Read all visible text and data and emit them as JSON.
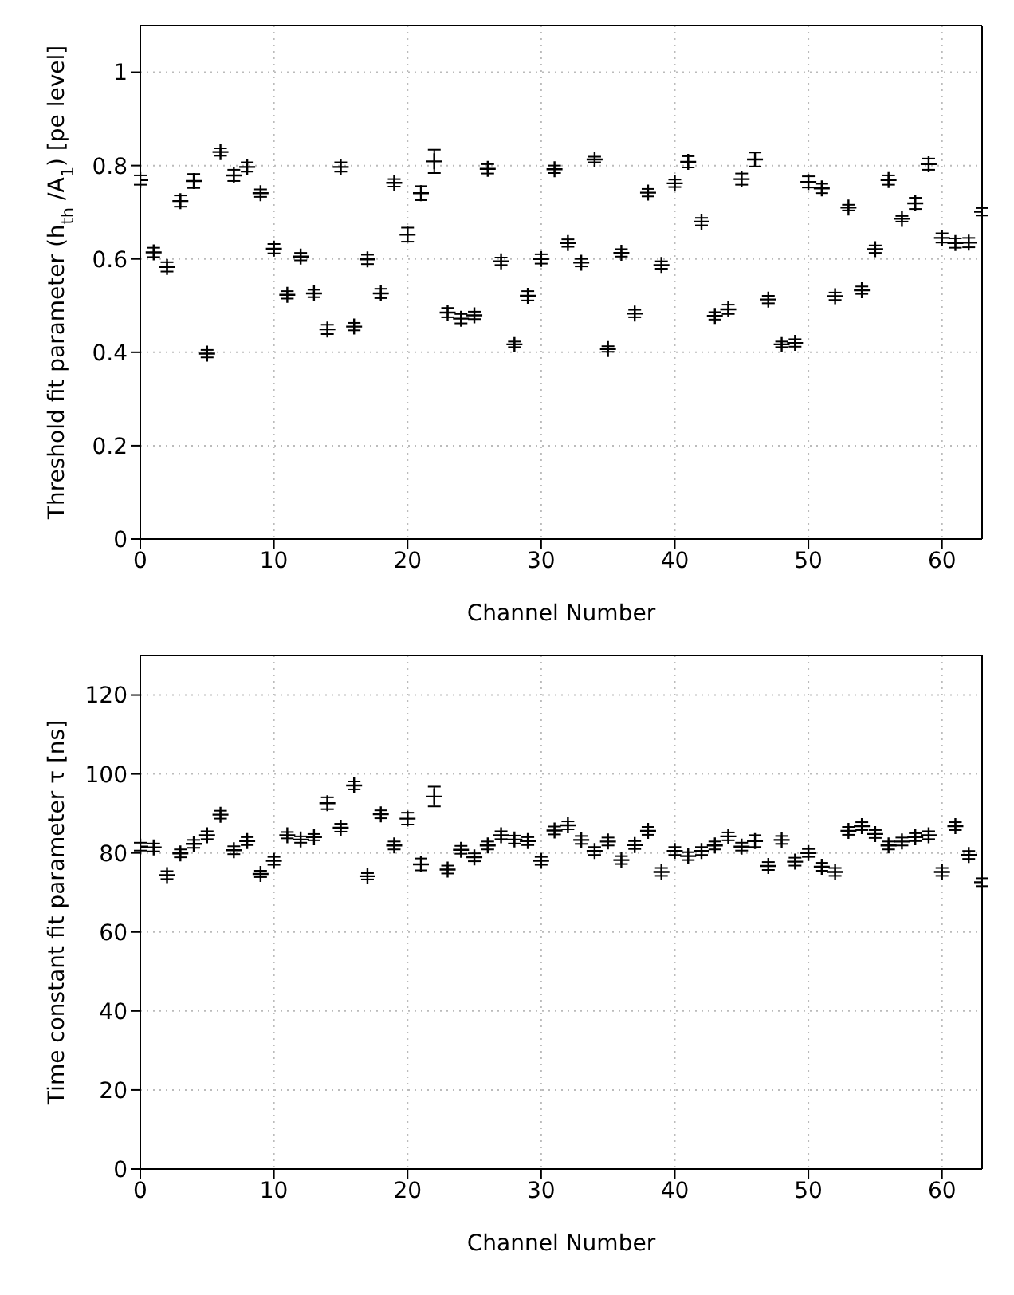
{
  "chart_data": [
    {
      "type": "scatter",
      "xlabel": "Channel Number",
      "ylabel": "Threshold fit parameter (h$_{th}$ /A$_{1}$) [pe level]",
      "xlim": [
        0,
        63
      ],
      "xticks": [
        0,
        10,
        20,
        30,
        40,
        50,
        60
      ],
      "ylim": [
        0,
        1.1
      ],
      "yticks": [
        0,
        0.2,
        0.4,
        0.6,
        0.8,
        1
      ],
      "grid": true,
      "marker": "cross",
      "series": [
        {
          "color": "#000000",
          "x": [
            0,
            1,
            2,
            3,
            4,
            5,
            6,
            7,
            8,
            9,
            10,
            11,
            12,
            13,
            14,
            15,
            16,
            17,
            18,
            19,
            20,
            21,
            22,
            23,
            24,
            25,
            26,
            27,
            28,
            29,
            30,
            31,
            32,
            33,
            34,
            35,
            36,
            37,
            38,
            39,
            40,
            41,
            42,
            43,
            44,
            45,
            46,
            47,
            48,
            49,
            50,
            51,
            52,
            53,
            54,
            55,
            56,
            57,
            58,
            59,
            60,
            61,
            62,
            63
          ],
          "values": [
            0.769,
            0.614,
            0.583,
            0.724,
            0.767,
            0.397,
            0.829,
            0.779,
            0.797,
            0.741,
            0.622,
            0.523,
            0.605,
            0.526,
            0.449,
            0.797,
            0.455,
            0.599,
            0.526,
            0.763,
            0.652,
            0.741,
            0.809,
            0.485,
            0.472,
            0.479,
            0.793,
            0.595,
            0.417,
            0.521,
            0.6,
            0.792,
            0.634,
            0.592,
            0.813,
            0.407,
            0.613,
            0.483,
            0.742,
            0.587,
            0.762,
            0.808,
            0.68,
            0.478,
            0.492,
            0.771,
            0.813,
            0.513,
            0.417,
            0.42,
            0.765,
            0.751,
            0.52,
            0.71,
            0.533,
            0.621,
            0.769,
            0.686,
            0.719,
            0.803,
            0.645,
            0.634,
            0.635,
            0.701
          ],
          "errors": [
            0.01,
            0.01,
            0.01,
            0.012,
            0.015,
            0.008,
            0.008,
            0.012,
            0.01,
            0.008,
            0.01,
            0.008,
            0.008,
            0.008,
            0.01,
            0.01,
            0.008,
            0.01,
            0.01,
            0.008,
            0.015,
            0.015,
            0.025,
            0.01,
            0.01,
            0.008,
            0.01,
            0.008,
            0.006,
            0.01,
            0.01,
            0.008,
            0.008,
            0.008,
            0.006,
            0.006,
            0.008,
            0.008,
            0.008,
            0.008,
            0.008,
            0.012,
            0.008,
            0.008,
            0.01,
            0.012,
            0.015,
            0.008,
            0.006,
            0.008,
            0.012,
            0.01,
            0.008,
            0.006,
            0.008,
            0.008,
            0.01,
            0.006,
            0.012,
            0.012,
            0.01,
            0.01,
            0.01,
            0.008
          ]
        }
      ]
    },
    {
      "type": "scatter",
      "xlabel": "Channel Number",
      "ylabel": "Time constant fit parameter τ [ns]",
      "xlim": [
        0,
        63
      ],
      "xticks": [
        0,
        10,
        20,
        30,
        40,
        50,
        60
      ],
      "ylim": [
        0,
        130
      ],
      "yticks": [
        0,
        20,
        40,
        60,
        80,
        100,
        120
      ],
      "grid": true,
      "marker": "cross",
      "series": [
        {
          "color": "#000000",
          "x": [
            0,
            1,
            2,
            3,
            4,
            5,
            6,
            7,
            8,
            9,
            10,
            11,
            12,
            13,
            14,
            15,
            16,
            17,
            18,
            19,
            20,
            21,
            22,
            23,
            24,
            25,
            26,
            27,
            28,
            29,
            30,
            31,
            32,
            33,
            34,
            35,
            36,
            37,
            38,
            39,
            40,
            41,
            42,
            43,
            44,
            45,
            46,
            47,
            48,
            49,
            50,
            51,
            52,
            53,
            54,
            55,
            56,
            57,
            58,
            59,
            60,
            61,
            62,
            63
          ],
          "values": [
            81.6,
            81.4,
            74.4,
            79.9,
            82.3,
            84.5,
            89.7,
            80.7,
            83.0,
            74.7,
            78.0,
            84.5,
            83.4,
            84.0,
            92.6,
            86.4,
            97.1,
            74.1,
            89.8,
            81.9,
            88.7,
            77.1,
            94.3,
            75.8,
            80.8,
            78.9,
            81.9,
            84.5,
            83.4,
            83.0,
            78.0,
            85.7,
            87.0,
            83.3,
            80.5,
            82.9,
            78.2,
            82.0,
            85.6,
            75.2,
            80.5,
            79.2,
            80.5,
            81.9,
            84.2,
            81.6,
            83.0,
            76.7,
            83.3,
            77.8,
            80.0,
            76.5,
            75.2,
            85.6,
            86.8,
            84.8,
            81.9,
            82.9,
            84.0,
            84.5,
            75.2,
            86.8,
            79.5,
            72.6
          ],
          "errors": [
            1,
            1,
            1,
            1,
            1,
            1,
            1,
            1,
            1,
            0.8,
            1,
            0.8,
            0.8,
            0.8,
            1.5,
            1,
            1,
            0.8,
            1,
            1,
            1.5,
            1.5,
            2.5,
            1,
            1,
            1,
            1,
            1,
            1,
            1,
            1,
            1,
            1,
            1,
            1,
            1,
            1,
            1,
            1,
            1,
            1,
            1,
            1,
            1,
            1,
            1,
            1.5,
            1,
            1,
            1,
            1,
            1,
            1,
            1,
            1,
            1,
            1,
            1,
            1,
            1,
            1,
            1,
            1,
            1
          ]
        }
      ]
    }
  ]
}
